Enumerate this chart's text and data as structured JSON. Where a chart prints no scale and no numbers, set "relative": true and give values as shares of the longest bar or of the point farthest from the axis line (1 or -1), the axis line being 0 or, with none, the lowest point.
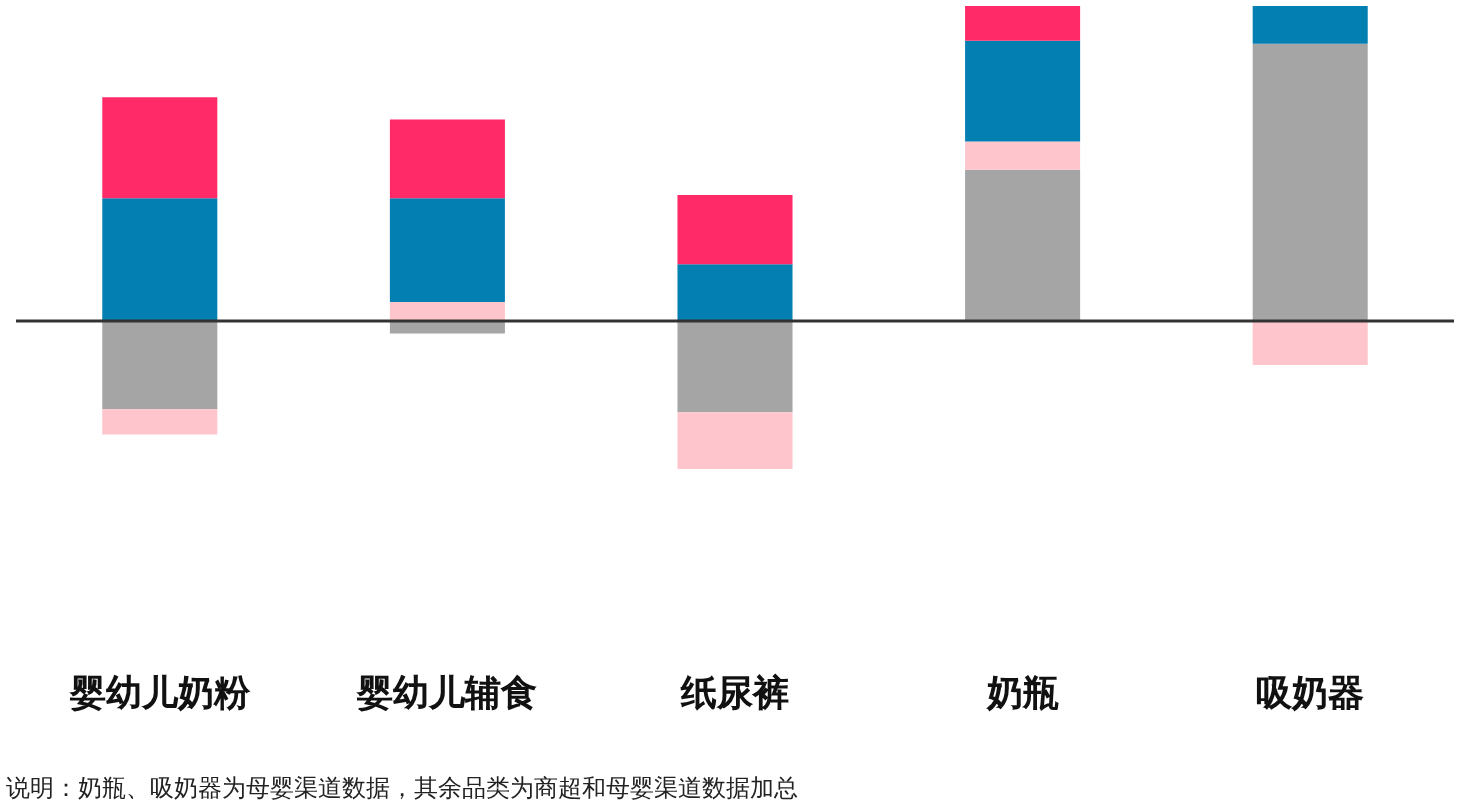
{
  "chart_data": {
    "type": "bar",
    "relative": true,
    "stacked": true,
    "categories": [
      "婴幼儿奶粉",
      "婴幼儿辅食",
      "纸尿裤",
      "奶瓶",
      "吸奶器"
    ],
    "series": [
      {
        "color": "#a5a5a5",
        "values": [
          -0.28,
          -0.04,
          -0.29,
          0.48,
          0.88
        ]
      },
      {
        "color": "#ffc5cc",
        "values": [
          -0.08,
          0.06,
          -0.18,
          0.09,
          -0.14
        ]
      },
      {
        "color": "#047fb2",
        "values": [
          0.39,
          0.33,
          0.18,
          0.32,
          0.12
        ]
      },
      {
        "color": "#ff2a67",
        "values": [
          0.32,
          0.25,
          0.22,
          0.11,
          null
        ]
      }
    ],
    "annotations": [
      "说明：奶瓶、吸奶器为母婴渠道数据，其余品类为商超和母婴渠道数据加总"
    ]
  }
}
